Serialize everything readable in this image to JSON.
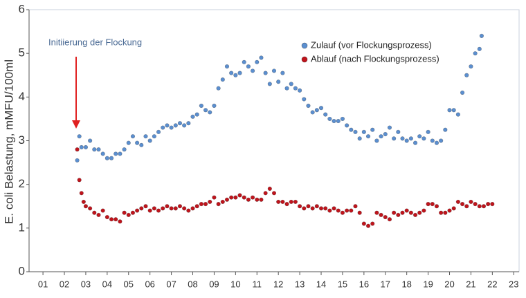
{
  "chart_data": {
    "type": "scatter",
    "ylabel": "E. coli Belastung, mMFU/100ml",
    "annotation": "Initiierung der Flockung",
    "xlim": [
      0.35,
      23.25
    ],
    "ylim": [
      0,
      6
    ],
    "yticks": [
      0,
      1,
      2,
      3,
      4,
      5,
      6
    ],
    "xticks": [
      {
        "value": 1,
        "label": "01"
      },
      {
        "value": 2,
        "label": "02"
      },
      {
        "value": 3,
        "label": "03"
      },
      {
        "value": 4,
        "label": "04"
      },
      {
        "value": 5,
        "label": "05"
      },
      {
        "value": 6,
        "label": "06"
      },
      {
        "value": 7,
        "label": "07"
      },
      {
        "value": 8,
        "label": "08"
      },
      {
        "value": 9,
        "label": "09"
      },
      {
        "value": 10,
        "label": "10"
      },
      {
        "value": 11,
        "label": "11"
      },
      {
        "value": 12,
        "label": "12"
      },
      {
        "value": 13,
        "label": "13"
      },
      {
        "value": 14,
        "label": "14"
      },
      {
        "value": 15,
        "label": "15"
      },
      {
        "value": 16,
        "label": "16"
      },
      {
        "value": 17,
        "label": "17"
      },
      {
        "value": 18,
        "label": "18"
      },
      {
        "value": 19,
        "label": "19"
      },
      {
        "value": 20,
        "label": "20"
      },
      {
        "value": 21,
        "label": "21"
      },
      {
        "value": 22,
        "label": "22"
      },
      {
        "value": 23,
        "label": "23"
      }
    ],
    "legend": "top-right",
    "series": [
      {
        "name": "Zulauf (vor Flockungsprozess)",
        "color": "#5b8fd0",
        "x": [
          2.6,
          2.7,
          2.8,
          3.0,
          3.2,
          3.4,
          3.6,
          3.8,
          4.0,
          4.2,
          4.4,
          4.6,
          4.8,
          5.0,
          5.2,
          5.4,
          5.6,
          5.8,
          6.0,
          6.2,
          6.4,
          6.6,
          6.8,
          7.0,
          7.2,
          7.4,
          7.6,
          7.8,
          8.0,
          8.2,
          8.4,
          8.6,
          8.8,
          9.0,
          9.2,
          9.4,
          9.6,
          9.8,
          10.0,
          10.2,
          10.4,
          10.6,
          10.8,
          11.0,
          11.2,
          11.4,
          11.6,
          11.8,
          12.0,
          12.2,
          12.4,
          12.6,
          12.8,
          13.0,
          13.2,
          13.4,
          13.6,
          13.8,
          14.0,
          14.2,
          14.4,
          14.6,
          14.8,
          15.0,
          15.2,
          15.4,
          15.6,
          15.8,
          16.0,
          16.2,
          16.4,
          16.6,
          16.8,
          17.0,
          17.2,
          17.4,
          17.6,
          17.8,
          18.0,
          18.2,
          18.4,
          18.6,
          18.8,
          19.0,
          19.2,
          19.4,
          19.6,
          19.8,
          20.0,
          20.2,
          20.4,
          20.6,
          20.8,
          21.0,
          21.2,
          21.4,
          21.5
        ],
        "values": [
          2.55,
          3.1,
          2.85,
          2.85,
          3.0,
          2.8,
          2.8,
          2.7,
          2.6,
          2.6,
          2.7,
          2.7,
          2.8,
          2.95,
          3.1,
          2.95,
          2.9,
          3.1,
          3.0,
          3.1,
          3.2,
          3.3,
          3.35,
          3.3,
          3.35,
          3.4,
          3.35,
          3.4,
          3.55,
          3.6,
          3.8,
          3.7,
          3.65,
          3.8,
          4.2,
          4.4,
          4.7,
          4.55,
          4.5,
          4.55,
          4.8,
          4.7,
          4.6,
          4.8,
          4.9,
          4.55,
          4.3,
          4.6,
          4.35,
          4.55,
          4.2,
          4.3,
          4.2,
          4.15,
          3.95,
          3.8,
          3.65,
          3.7,
          3.75,
          3.6,
          3.5,
          3.45,
          3.45,
          3.5,
          3.35,
          3.25,
          3.2,
          3.05,
          3.2,
          3.1,
          3.25,
          3.0,
          3.1,
          3.15,
          3.3,
          3.05,
          3.2,
          3.05,
          3.0,
          3.05,
          2.95,
          3.1,
          3.05,
          3.2,
          3.0,
          2.95,
          3.0,
          3.25,
          3.7,
          3.7,
          3.6,
          4.1,
          4.5,
          4.7,
          5.0,
          5.1,
          5.4
        ]
      },
      {
        "name": "Ablauf (nach Flockungsprozess)",
        "color": "#c0141c",
        "x": [
          2.6,
          2.7,
          2.8,
          2.9,
          3.0,
          3.2,
          3.4,
          3.6,
          3.8,
          4.0,
          4.2,
          4.4,
          4.6,
          4.8,
          5.0,
          5.2,
          5.4,
          5.6,
          5.8,
          6.0,
          6.2,
          6.4,
          6.6,
          6.8,
          7.0,
          7.2,
          7.4,
          7.6,
          7.8,
          8.0,
          8.2,
          8.4,
          8.6,
          8.8,
          9.0,
          9.2,
          9.4,
          9.6,
          9.8,
          10.0,
          10.2,
          10.4,
          10.6,
          10.8,
          11.0,
          11.2,
          11.4,
          11.6,
          11.8,
          12.0,
          12.2,
          12.4,
          12.6,
          12.8,
          13.0,
          13.2,
          13.4,
          13.6,
          13.8,
          14.0,
          14.2,
          14.4,
          14.6,
          14.8,
          15.0,
          15.2,
          15.4,
          15.6,
          15.8,
          16.0,
          16.2,
          16.4,
          16.6,
          16.8,
          17.0,
          17.2,
          17.4,
          17.6,
          17.8,
          18.0,
          18.2,
          18.4,
          18.6,
          18.8,
          19.0,
          19.2,
          19.4,
          19.6,
          19.8,
          20.0,
          20.2,
          20.4,
          20.6,
          20.8,
          21.0,
          21.2,
          21.4,
          21.6,
          21.8,
          22.0
        ],
        "values": [
          2.8,
          2.1,
          1.8,
          1.6,
          1.5,
          1.45,
          1.35,
          1.3,
          1.4,
          1.25,
          1.2,
          1.2,
          1.15,
          1.35,
          1.3,
          1.35,
          1.4,
          1.45,
          1.5,
          1.4,
          1.45,
          1.4,
          1.45,
          1.5,
          1.45,
          1.45,
          1.5,
          1.45,
          1.4,
          1.45,
          1.5,
          1.55,
          1.55,
          1.6,
          1.7,
          1.55,
          1.6,
          1.65,
          1.7,
          1.7,
          1.75,
          1.7,
          1.65,
          1.7,
          1.65,
          1.65,
          1.8,
          1.9,
          1.8,
          1.6,
          1.6,
          1.55,
          1.6,
          1.6,
          1.5,
          1.45,
          1.5,
          1.45,
          1.5,
          1.45,
          1.45,
          1.4,
          1.45,
          1.4,
          1.35,
          1.4,
          1.4,
          1.5,
          1.35,
          1.1,
          1.05,
          1.1,
          1.35,
          1.3,
          1.25,
          1.2,
          1.35,
          1.3,
          1.35,
          1.4,
          1.35,
          1.3,
          1.35,
          1.4,
          1.55,
          1.55,
          1.5,
          1.35,
          1.35,
          1.4,
          1.45,
          1.6,
          1.55,
          1.5,
          1.6,
          1.55,
          1.5,
          1.5,
          1.55,
          1.55
        ]
      }
    ]
  }
}
